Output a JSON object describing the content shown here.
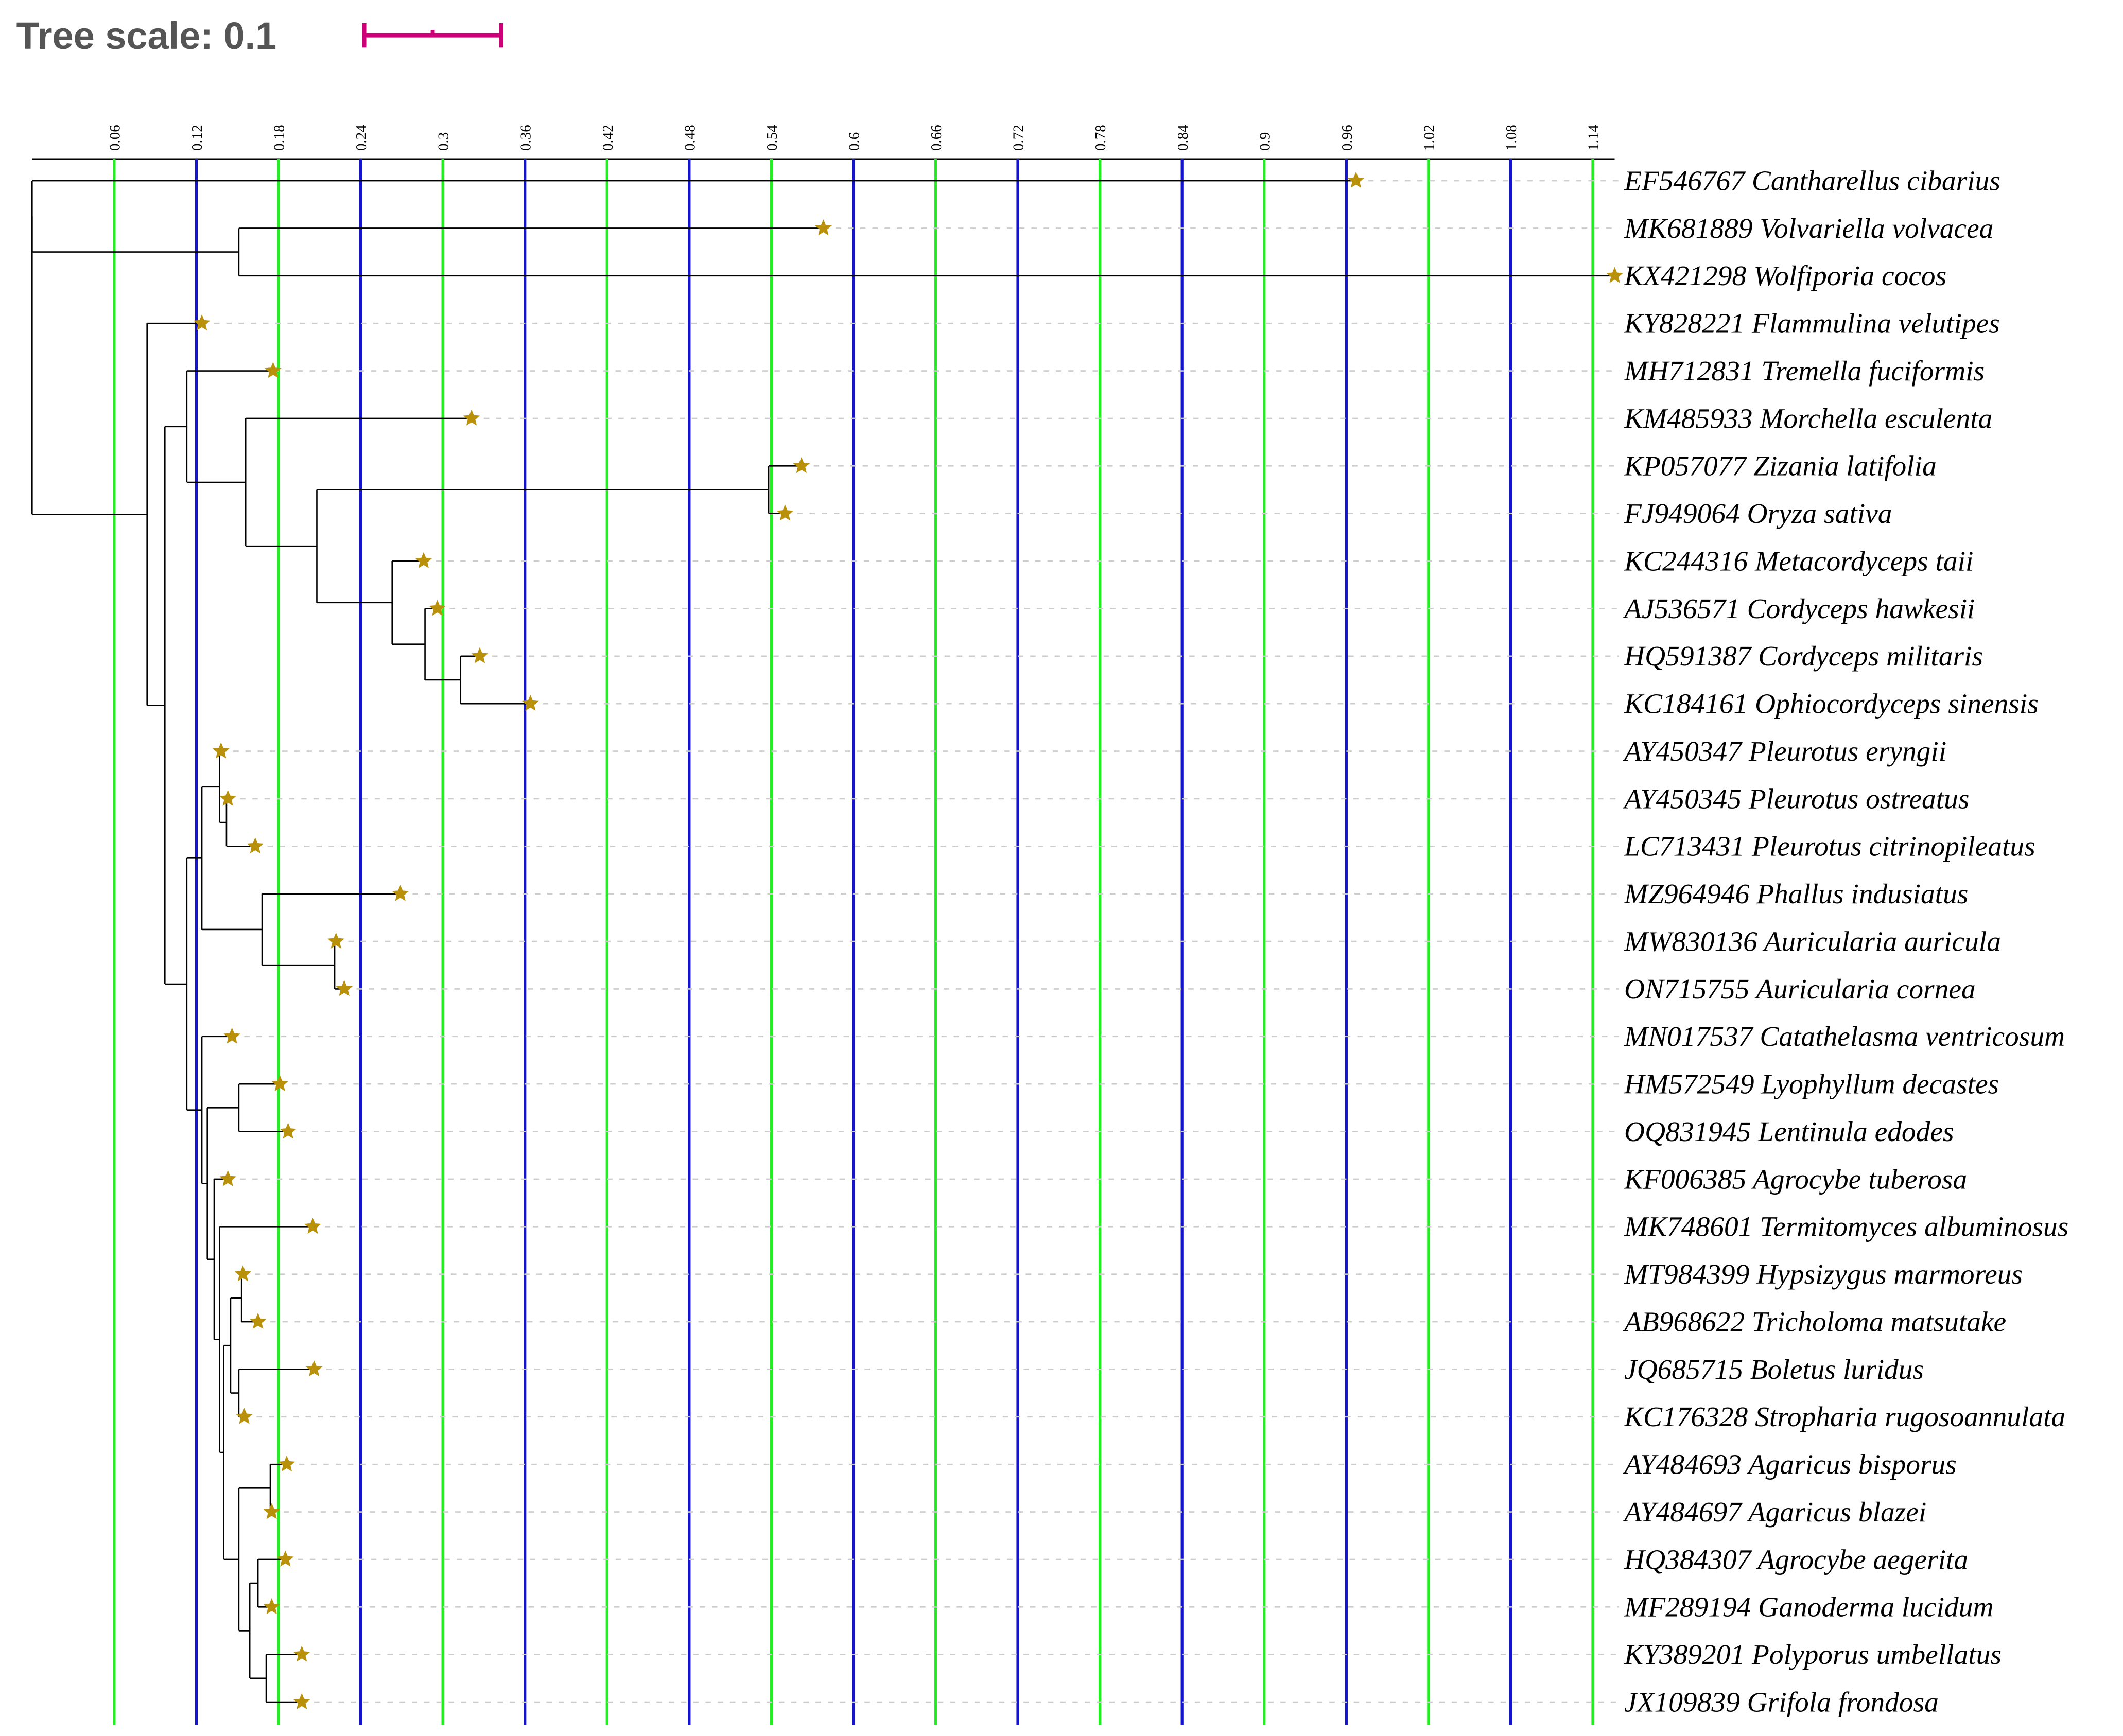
{
  "chart_data": {
    "type": "tree",
    "title": "Tree scale: 0.1",
    "scale_bar": {
      "length": 0.1,
      "color": "#cc0077"
    },
    "xlim": [
      0,
      1.156
    ],
    "xticks": [
      0.06,
      0.12,
      0.18,
      0.24,
      0.3,
      0.36,
      0.42,
      0.48,
      0.54,
      0.6,
      0.66,
      0.72,
      0.78,
      0.84,
      0.9,
      0.96,
      1.02,
      1.08,
      1.14
    ],
    "grid_colors": [
      "#22ee22",
      "#1414cc"
    ],
    "star_color": "#b8900a",
    "tree": {
      "x": 0,
      "children": [
        {
          "x": 0,
          "children": [
            {
              "label": "EF546767 Cantharellus cibarius",
              "x": 0.967
            },
            {
              "x": 0.151,
              "children": [
                {
                  "label": "MK681889 Volvariella volvacea",
                  "x": 0.578
                },
                {
                  "label": "KX421298 Wolfiporia cocos",
                  "x": 1.156
                }
              ]
            }
          ]
        },
        {
          "x": 0.084,
          "children": [
            {
              "label": "KY828221 Flammulina velutipes",
              "x": 0.124
            },
            {
              "x": 0.097,
              "children": [
                {
                  "x": 0.113,
                  "children": [
                    {
                      "label": "MH712831 Tremella fuciformis",
                      "x": 0.176
                    },
                    {
                      "x": 0.156,
                      "children": [
                        {
                          "label": "KM485933 Morchella esculenta",
                          "x": 0.321
                        },
                        {
                          "x": 0.208,
                          "children": [
                            {
                              "x": 0.538,
                              "children": [
                                {
                                  "label": "KP057077 Zizania latifolia",
                                  "x": 0.562
                                },
                                {
                                  "label": "FJ949064 Oryza sativa",
                                  "x": 0.55
                                }
                              ]
                            },
                            {
                              "x": 0.263,
                              "children": [
                                {
                                  "label": "KC244316 Metacordyceps taii",
                                  "x": 0.286
                                },
                                {
                                  "x": 0.287,
                                  "children": [
                                    {
                                      "label": "AJ536571 Cordyceps hawkesii",
                                      "x": 0.296
                                    },
                                    {
                                      "x": 0.313,
                                      "children": [
                                        {
                                          "label": "HQ591387 Cordyceps militaris",
                                          "x": 0.327
                                        },
                                        {
                                          "label": "KC184161 Ophiocordyceps sinensis",
                                          "x": 0.364
                                        }
                                      ]
                                    }
                                  ]
                                }
                              ]
                            }
                          ]
                        }
                      ]
                    }
                  ]
                },
                {
                  "x": 0.113,
                  "children": [
                    {
                      "x": 0.124,
                      "children": [
                        {
                          "x": 0.137,
                          "children": [
                            {
                              "label": "AY450347 Pleurotus eryngii",
                              "x": 0.138
                            },
                            {
                              "x": 0.142,
                              "children": [
                                {
                                  "label": "AY450345 Pleurotus ostreatus",
                                  "x": 0.143
                                },
                                {
                                  "label": "LC713431 Pleurotus citrinopileatus",
                                  "x": 0.163
                                }
                              ]
                            }
                          ]
                        },
                        {
                          "x": 0.168,
                          "children": [
                            {
                              "label": "MZ964946 Phallus indusiatus",
                              "x": 0.269
                            },
                            {
                              "x": 0.221,
                              "children": [
                                {
                                  "label": "MW830136 Auricularia auricula",
                                  "x": 0.222
                                },
                                {
                                  "label": "ON715755 Auricularia cornea",
                                  "x": 0.228
                                }
                              ]
                            }
                          ]
                        }
                      ]
                    },
                    {
                      "x": 0.124,
                      "children": [
                        {
                          "label": "MN017537 Catathelasma ventricosum",
                          "x": 0.146
                        },
                        {
                          "x": 0.128,
                          "children": [
                            {
                              "x": 0.151,
                              "children": [
                                {
                                  "label": "HM572549 Lyophyllum decastes",
                                  "x": 0.181
                                },
                                {
                                  "label": "OQ831945 Lentinula edodes",
                                  "x": 0.187
                                }
                              ]
                            },
                            {
                              "x": 0.133,
                              "children": [
                                {
                                  "label": "KF006385 Agrocybe tuberosa",
                                  "x": 0.143
                                },
                                {
                                  "x": 0.137,
                                  "children": [
                                    {
                                      "label": "MK748601 Termitomyces albuminosus",
                                      "x": 0.205
                                    },
                                    {
                                      "x": 0.14,
                                      "children": [
                                        {
                                          "x": 0.145,
                                          "children": [
                                            {
                                              "x": 0.153,
                                              "children": [
                                                {
                                                  "label": "MT984399 Hypsizygus marmoreus",
                                                  "x": 0.154
                                                },
                                                {
                                                  "label": "AB968622 Tricholoma matsutake",
                                                  "x": 0.165
                                                }
                                              ]
                                            },
                                            {
                                              "x": 0.151,
                                              "children": [
                                                {
                                                  "label": "JQ685715 Boletus luridus",
                                                  "x": 0.206
                                                },
                                                {
                                                  "label": "KC176328 Stropharia rugosoannulata",
                                                  "x": 0.155
                                                }
                                              ]
                                            }
                                          ]
                                        },
                                        {
                                          "x": 0.151,
                                          "children": [
                                            {
                                              "x": 0.174,
                                              "children": [
                                                {
                                                  "label": "AY484693 Agaricus bisporus",
                                                  "x": 0.186
                                                },
                                                {
                                                  "label": "AY484697 Agaricus blazei",
                                                  "x": 0.175
                                                }
                                              ]
                                            },
                                            {
                                              "x": 0.159,
                                              "children": [
                                                {
                                                  "x": 0.165,
                                                  "children": [
                                                    {
                                                      "label": "HQ384307 Agrocybe aegerita",
                                                      "x": 0.185
                                                    },
                                                    {
                                                      "label": "MF289194 Ganoderma lucidum",
                                                      "x": 0.175
                                                    }
                                                  ]
                                                },
                                                {
                                                  "x": 0.171,
                                                  "children": [
                                                    {
                                                      "label": "KY389201 Polyporus umbellatus",
                                                      "x": 0.197
                                                    },
                                                    {
                                                      "label": "JX109839 Grifola frondosa",
                                                      "x": 0.197
                                                    }
                                                  ]
                                                }
                                              ]
                                            }
                                          ]
                                        }
                                      ]
                                    }
                                  ]
                                }
                              ]
                            }
                          ]
                        }
                      ]
                    }
                  ]
                }
              ]
            }
          ]
        }
      ]
    }
  }
}
